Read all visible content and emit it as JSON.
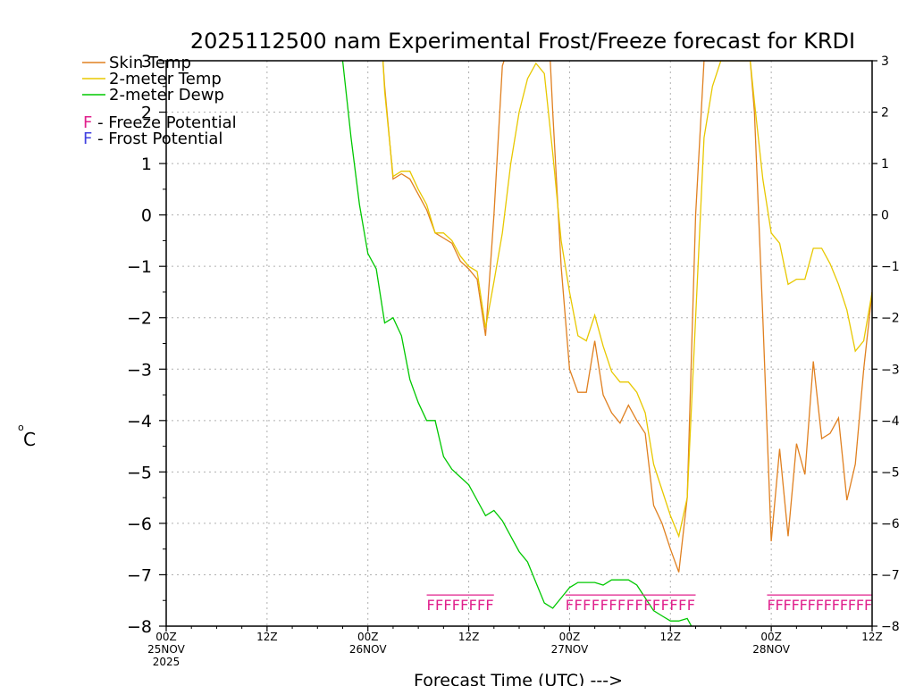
{
  "chart_data": {
    "type": "line",
    "title": "2025112500 nam Experimental Frost/Freeze forecast for KRDI",
    "xlabel": "Forecast Time (UTC) --->",
    "ylabel_unit": "C",
    "ylabel_prefix": "o",
    "ylim": [
      -8,
      3
    ],
    "yticks": [
      3,
      2,
      1,
      0,
      -1,
      -2,
      -3,
      -4,
      -5,
      -6,
      -7,
      -8
    ],
    "xlim": [
      0,
      84
    ],
    "grid": true,
    "xticks": [
      {
        "x": 0,
        "label": "00Z",
        "sub": [
          "25NOV",
          "2025"
        ]
      },
      {
        "x": 12,
        "label": "12Z",
        "sub": []
      },
      {
        "x": 24,
        "label": "00Z",
        "sub": [
          "26NOV"
        ]
      },
      {
        "x": 36,
        "label": "12Z",
        "sub": []
      },
      {
        "x": 48,
        "label": "00Z",
        "sub": [
          "27NOV"
        ]
      },
      {
        "x": 60,
        "label": "12Z",
        "sub": []
      },
      {
        "x": 72,
        "label": "00Z",
        "sub": [
          "28NOV"
        ]
      },
      {
        "x": 84,
        "label": "12Z",
        "sub": []
      }
    ],
    "legend_location": "top-left",
    "legend": [
      {
        "name": "Skin Temp",
        "color": "#e08020"
      },
      {
        "name": "2-meter Temp",
        "color": "#e8c800"
      },
      {
        "name": "2-meter Dewp",
        "color": "#00c800"
      }
    ],
    "markers_legend": [
      {
        "symbol": "F",
        "text": " - Freeze Potential",
        "color": "#e0208c"
      },
      {
        "symbol": "F",
        "text": " - Frost Potential",
        "color": "#4040e0"
      }
    ],
    "series": [
      {
        "name": "Skin Temp",
        "color": "#e08020",
        "points": [
          [
            25.8,
            3.0
          ],
          [
            26,
            2.5
          ],
          [
            27,
            0.7
          ],
          [
            28,
            0.8
          ],
          [
            29,
            0.7
          ],
          [
            30,
            0.4
          ],
          [
            31,
            0.1
          ],
          [
            32,
            -0.35
          ],
          [
            33,
            -0.45
          ],
          [
            34,
            -0.55
          ],
          [
            35,
            -0.9
          ],
          [
            36,
            -1.05
          ],
          [
            37,
            -1.25
          ],
          [
            38,
            -2.35
          ],
          [
            39,
            0.0
          ],
          [
            40,
            2.9
          ],
          [
            40.2,
            3.0
          ],
          [
            45.7,
            3.0
          ],
          [
            46,
            2.0
          ],
          [
            47,
            -1.0
          ],
          [
            48,
            -3.0
          ],
          [
            49,
            -3.45
          ],
          [
            50,
            -3.45
          ],
          [
            51,
            -2.45
          ],
          [
            52,
            -3.5
          ],
          [
            53,
            -3.85
          ],
          [
            54,
            -4.05
          ],
          [
            55,
            -3.7
          ],
          [
            56,
            -4.0
          ],
          [
            57,
            -4.25
          ],
          [
            58,
            -5.65
          ],
          [
            59,
            -6.0
          ],
          [
            60,
            -6.5
          ],
          [
            61,
            -6.95
          ],
          [
            62,
            -5.5
          ],
          [
            63,
            0.0
          ],
          [
            64,
            3.0
          ],
          [
            69.5,
            3.0
          ],
          [
            70,
            2.0
          ],
          [
            71,
            -2.0
          ],
          [
            72,
            -6.35
          ],
          [
            73,
            -4.55
          ],
          [
            74,
            -6.25
          ],
          [
            75,
            -4.45
          ],
          [
            76,
            -5.05
          ],
          [
            77,
            -2.85
          ],
          [
            78,
            -4.35
          ],
          [
            79,
            -4.25
          ],
          [
            80,
            -3.95
          ],
          [
            81,
            -5.55
          ],
          [
            82,
            -4.85
          ],
          [
            83,
            -3.0
          ],
          [
            84,
            -1.5
          ]
        ]
      },
      {
        "name": "2-meter Temp",
        "color": "#e8c800",
        "points": [
          [
            25.8,
            3.0
          ],
          [
            26,
            2.4
          ],
          [
            27,
            0.75
          ],
          [
            28,
            0.85
          ],
          [
            29,
            0.85
          ],
          [
            30,
            0.5
          ],
          [
            31,
            0.2
          ],
          [
            32,
            -0.35
          ],
          [
            33,
            -0.35
          ],
          [
            34,
            -0.5
          ],
          [
            35,
            -0.8
          ],
          [
            36,
            -1.0
          ],
          [
            37,
            -1.1
          ],
          [
            38,
            -2.2
          ],
          [
            39,
            -1.3
          ],
          [
            40,
            -0.35
          ],
          [
            41,
            1.0
          ],
          [
            42,
            2.0
          ],
          [
            43,
            2.65
          ],
          [
            44,
            2.95
          ],
          [
            45,
            2.75
          ],
          [
            46,
            1.2
          ],
          [
            47,
            -0.5
          ],
          [
            48,
            -1.5
          ],
          [
            49,
            -2.35
          ],
          [
            50,
            -2.45
          ],
          [
            51,
            -1.95
          ],
          [
            52,
            -2.55
          ],
          [
            53,
            -3.05
          ],
          [
            54,
            -3.25
          ],
          [
            55,
            -3.25
          ],
          [
            56,
            -3.45
          ],
          [
            57,
            -3.85
          ],
          [
            58,
            -4.85
          ],
          [
            59,
            -5.35
          ],
          [
            60,
            -5.85
          ],
          [
            61,
            -6.25
          ],
          [
            62,
            -5.5
          ],
          [
            63,
            -2.0
          ],
          [
            64,
            1.5
          ],
          [
            65,
            2.5
          ],
          [
            66,
            3.0
          ],
          [
            69.5,
            3.0
          ],
          [
            70,
            2.2
          ],
          [
            71,
            0.7
          ],
          [
            72,
            -0.35
          ],
          [
            73,
            -0.55
          ],
          [
            74,
            -1.35
          ],
          [
            75,
            -1.25
          ],
          [
            76,
            -1.25
          ],
          [
            77,
            -0.65
          ],
          [
            78,
            -0.65
          ],
          [
            79,
            -0.95
          ],
          [
            80,
            -1.35
          ],
          [
            81,
            -1.85
          ],
          [
            82,
            -2.65
          ],
          [
            83,
            -2.45
          ],
          [
            84,
            -1.5
          ]
        ]
      },
      {
        "name": "2-meter Dewp",
        "color": "#00c800",
        "points": [
          [
            21,
            3.0
          ],
          [
            22,
            1.5
          ],
          [
            23,
            0.2
          ],
          [
            24,
            -0.75
          ],
          [
            25,
            -1.05
          ],
          [
            26,
            -2.1
          ],
          [
            27,
            -2.0
          ],
          [
            28,
            -2.35
          ],
          [
            29,
            -3.2
          ],
          [
            30,
            -3.65
          ],
          [
            31,
            -4.0
          ],
          [
            32,
            -4.0
          ],
          [
            33,
            -4.7
          ],
          [
            34,
            -4.95
          ],
          [
            35,
            -5.1
          ],
          [
            36,
            -5.25
          ],
          [
            37,
            -5.55
          ],
          [
            38,
            -5.85
          ],
          [
            39,
            -5.75
          ],
          [
            40,
            -5.95
          ],
          [
            41,
            -6.25
          ],
          [
            42,
            -6.55
          ],
          [
            43,
            -6.75
          ],
          [
            44,
            -7.15
          ],
          [
            45,
            -7.55
          ],
          [
            46,
            -7.65
          ],
          [
            47,
            -7.45
          ],
          [
            48,
            -7.25
          ],
          [
            49,
            -7.15
          ],
          [
            50,
            -7.15
          ],
          [
            51,
            -7.15
          ],
          [
            52,
            -7.2
          ],
          [
            53,
            -7.1
          ],
          [
            54,
            -7.1
          ],
          [
            55,
            -7.1
          ],
          [
            56,
            -7.2
          ],
          [
            57,
            -7.45
          ],
          [
            58,
            -7.7
          ],
          [
            59,
            -7.8
          ],
          [
            60,
            -7.9
          ],
          [
            61,
            -7.9
          ],
          [
            62,
            -7.85
          ],
          [
            62.5,
            -8.0
          ]
        ]
      }
    ],
    "freeze_markers": {
      "symbol": "F",
      "color": "#e0208c",
      "y": -7.55,
      "runs": [
        {
          "start": 31,
          "end": 39,
          "count": 8
        },
        {
          "start": 47.5,
          "end": 63,
          "count": 15
        },
        {
          "start": 71.5,
          "end": 84,
          "count": 13
        }
      ]
    }
  }
}
